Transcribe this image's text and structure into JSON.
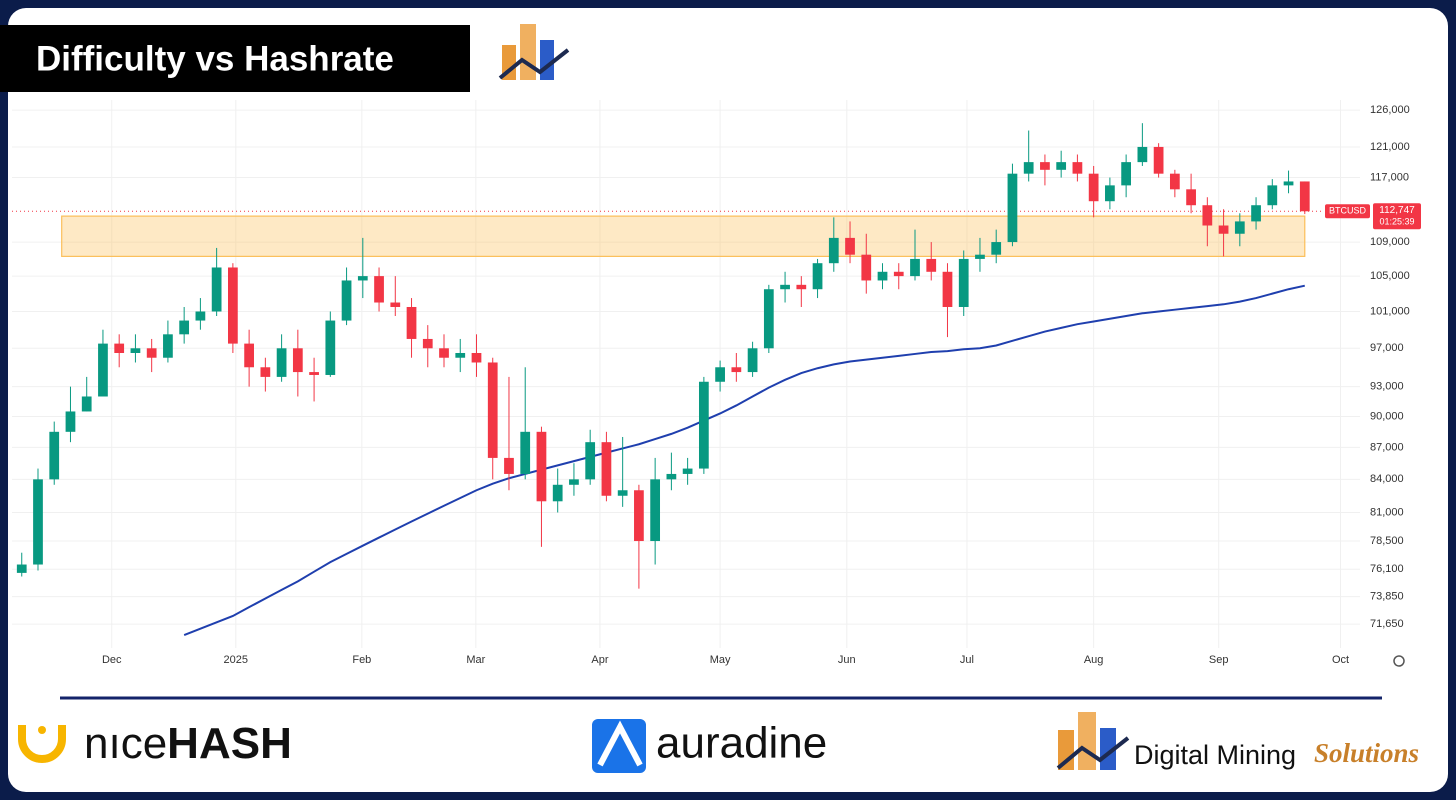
{
  "chart_data": {
    "type": "candlestick",
    "title": "Difficulty vs Hashrate",
    "log": true,
    "grid": true,
    "ylim": [
      69800,
      127400
    ],
    "yticks": [
      {
        "value": 71650,
        "label": "71,650"
      },
      {
        "value": 73850,
        "label": "73,850"
      },
      {
        "value": 76100,
        "label": "76,100"
      },
      {
        "value": 78500,
        "label": "78,500"
      },
      {
        "value": 81000,
        "label": "81,000"
      },
      {
        "value": 84000,
        "label": "84,000"
      },
      {
        "value": 87000,
        "label": "87,000"
      },
      {
        "value": 90000,
        "label": "90,000"
      },
      {
        "value": 93000,
        "label": "93,000"
      },
      {
        "value": 97000,
        "label": "97,000"
      },
      {
        "value": 101000,
        "label": "101,000"
      },
      {
        "value": 105000,
        "label": "105,000"
      },
      {
        "value": 109000,
        "label": "109,000"
      },
      {
        "value": 117000,
        "label": "117,000"
      },
      {
        "value": 121000,
        "label": "121,000"
      },
      {
        "value": 126000,
        "label": "126,000"
      }
    ],
    "xlim": [
      -0.6,
      82.4
    ],
    "xticks": [
      {
        "value": 5.54,
        "label": "Dec"
      },
      {
        "value": 13.18,
        "label": "2025"
      },
      {
        "value": 20.94,
        "label": "Feb"
      },
      {
        "value": 27.96,
        "label": "Mar"
      },
      {
        "value": 35.6,
        "label": "Apr"
      },
      {
        "value": 43.0,
        "label": "May"
      },
      {
        "value": 50.8,
        "label": "Jun"
      },
      {
        "value": 58.2,
        "label": "Jul"
      },
      {
        "value": 66.0,
        "label": "Aug"
      },
      {
        "value": 73.7,
        "label": "Sep"
      },
      {
        "value": 81.2,
        "label": "Oct"
      }
    ],
    "candles": {
      "name": "BTCUSD",
      "up_color": "#089981",
      "down_color": "#f23645",
      "open": [
        75800,
        76500,
        84000,
        88500,
        90500,
        92000,
        97500,
        96500,
        97000,
        96000,
        98500,
        100000,
        101000,
        106000,
        97500,
        95000,
        94000,
        97000,
        94500,
        94200,
        100000,
        104500,
        105000,
        102000,
        101500,
        98000,
        97000,
        96000,
        96500,
        95500,
        86000,
        84500,
        88500,
        82000,
        83500,
        84000,
        87500,
        82500,
        83000,
        78500,
        84000,
        84500,
        85000,
        93500,
        95000,
        94500,
        97000,
        103500,
        104000,
        103500,
        106500,
        109500,
        107500,
        104500,
        105500,
        105000,
        107000,
        105500,
        101500,
        107000,
        107500,
        109000,
        117500,
        119000,
        118000,
        119000,
        117500,
        114000,
        116000,
        119000,
        121000,
        117500,
        115500,
        113500,
        111000,
        110000,
        111500,
        113500,
        116000,
        116500
      ],
      "high": [
        77500,
        85000,
        89500,
        93000,
        94000,
        99000,
        98500,
        98500,
        98000,
        100000,
        101500,
        102500,
        108300,
        106500,
        99000,
        96000,
        98500,
        99000,
        96000,
        101000,
        106000,
        109500,
        106000,
        105000,
        102500,
        99500,
        98500,
        98000,
        98500,
        96000,
        94000,
        95000,
        89000,
        85000,
        85500,
        88700,
        88500,
        88000,
        83500,
        86000,
        86500,
        86000,
        94000,
        95700,
        96500,
        97700,
        104000,
        105500,
        105000,
        107000,
        112000,
        111500,
        110000,
        106500,
        106500,
        110500,
        109000,
        106500,
        108000,
        109500,
        110500,
        118800,
        123200,
        120000,
        120500,
        120000,
        118500,
        117000,
        120000,
        124200,
        121500,
        118000,
        117500,
        114500,
        113000,
        112500,
        114500,
        116800,
        117900,
        116500
      ],
      "low": [
        75500,
        76000,
        83500,
        87500,
        90500,
        92000,
        95000,
        95500,
        94500,
        95500,
        97500,
        99000,
        100500,
        96500,
        93000,
        92500,
        93500,
        92000,
        91500,
        94000,
        99500,
        102500,
        101000,
        100500,
        96000,
        95000,
        95000,
        94500,
        94000,
        84000,
        83000,
        84000,
        78000,
        81000,
        82500,
        83500,
        82000,
        81500,
        74500,
        76500,
        83000,
        83500,
        84500,
        92500,
        93500,
        94000,
        96500,
        102000,
        101500,
        102500,
        105500,
        106500,
        103000,
        103500,
        103500,
        104500,
        104500,
        98200,
        100500,
        105500,
        106500,
        108500,
        116500,
        116000,
        117000,
        116500,
        112000,
        113000,
        114500,
        118500,
        117000,
        114500,
        112500,
        108500,
        107300,
        108500,
        110500,
        113000,
        115000,
        112400
      ],
      "close": [
        76500,
        84000,
        88500,
        90500,
        92000,
        97500,
        96500,
        97000,
        96000,
        98500,
        100000,
        101000,
        106000,
        97500,
        95000,
        94000,
        97000,
        94500,
        94200,
        100000,
        104500,
        105000,
        102000,
        101500,
        98000,
        97000,
        96000,
        96500,
        95500,
        86000,
        84500,
        88500,
        82000,
        83500,
        84000,
        87500,
        82500,
        83000,
        78500,
        84000,
        84500,
        85000,
        93500,
        95000,
        94500,
        97000,
        103500,
        104000,
        103500,
        106500,
        109500,
        107500,
        104500,
        105500,
        105000,
        107000,
        105500,
        101500,
        107000,
        107500,
        109000,
        117500,
        119000,
        118000,
        119000,
        117500,
        114000,
        116000,
        119000,
        121000,
        117500,
        115500,
        113500,
        111000,
        110000,
        111500,
        113500,
        116000,
        116500,
        112747
      ]
    },
    "line": {
      "color": "#1f3fae",
      "values": [
        null,
        null,
        null,
        null,
        null,
        null,
        null,
        null,
        null,
        null,
        70800,
        71300,
        71800,
        72300,
        73000,
        73700,
        74400,
        75100,
        75900,
        76700,
        77400,
        78100,
        78800,
        79500,
        80200,
        80900,
        81600,
        82300,
        83000,
        83600,
        84100,
        84500,
        84900,
        85300,
        85700,
        86100,
        86500,
        86900,
        87300,
        87800,
        88300,
        88900,
        89600,
        90300,
        91100,
        92000,
        92900,
        93700,
        94400,
        94900,
        95300,
        95600,
        95800,
        96000,
        96200,
        96400,
        96600,
        96700,
        96900,
        97000,
        97300,
        97800,
        98300,
        98800,
        99200,
        99600,
        99900,
        100200,
        100500,
        100800,
        101000,
        101200,
        101400,
        101600,
        101800,
        102100,
        102500,
        103000,
        103500,
        103900
      ]
    },
    "zone": {
      "x": [
        2.46,
        79
      ],
      "y": [
        107300,
        112150
      ],
      "color": "#fbbf5a"
    },
    "last": {
      "value": 112747,
      "label": "112,747"
    },
    "countdown": "01:25:39"
  },
  "footer": {
    "nicehash": [
      "nıce",
      "HASH"
    ],
    "auradine": "auradine",
    "dms": [
      "Digital Mining",
      "Solutions"
    ]
  }
}
